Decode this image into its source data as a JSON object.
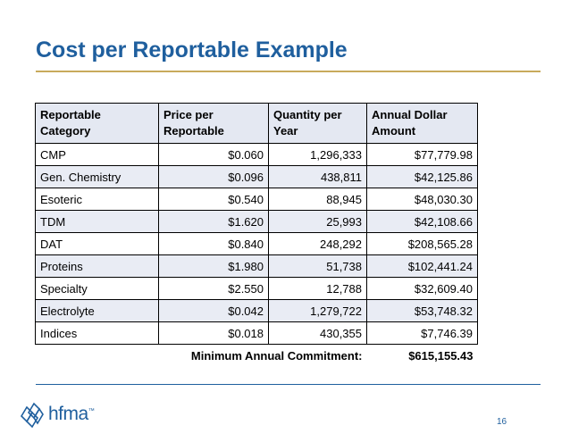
{
  "title": "Cost per Reportable Example",
  "table": {
    "headers": [
      "Reportable Category",
      "Price per Reportable",
      "Quantity per Year",
      "Annual Dollar Amount"
    ],
    "rows": [
      [
        "CMP",
        "$0.060",
        "1,296,333",
        "$77,779.98"
      ],
      [
        "Gen. Chemistry",
        "$0.096",
        "438,811",
        "$42,125.86"
      ],
      [
        "Esoteric",
        "$0.540",
        "88,945",
        "$48,030.30"
      ],
      [
        "TDM",
        "$1.620",
        "25,993",
        "$42,108.66"
      ],
      [
        "DAT",
        "$0.840",
        "248,292",
        "$208,565.28"
      ],
      [
        "Proteins",
        "$1.980",
        "51,738",
        "$102,441.24"
      ],
      [
        "Specialty",
        "$2.550",
        "12,788",
        "$32,609.40"
      ],
      [
        "Electrolyte",
        "$0.042",
        "1,279,722",
        "$53,748.32"
      ],
      [
        "Indices",
        "$0.018",
        "430,355",
        "$7,746.39"
      ]
    ],
    "summary": {
      "label": "Minimum Annual Commitment:",
      "value": "$615,155.43"
    }
  },
  "footer": {
    "logo_text": "hfma",
    "logo_mark": "™",
    "page_number": "16"
  },
  "colors": {
    "title": "#1f5f9e",
    "accent_rule": "#c8aa5c",
    "header_fill": "#e4e8f2",
    "alt_row_fill": "#e9ecf4"
  },
  "icons": {
    "logo": "hfma-lattice-logo-icon"
  }
}
